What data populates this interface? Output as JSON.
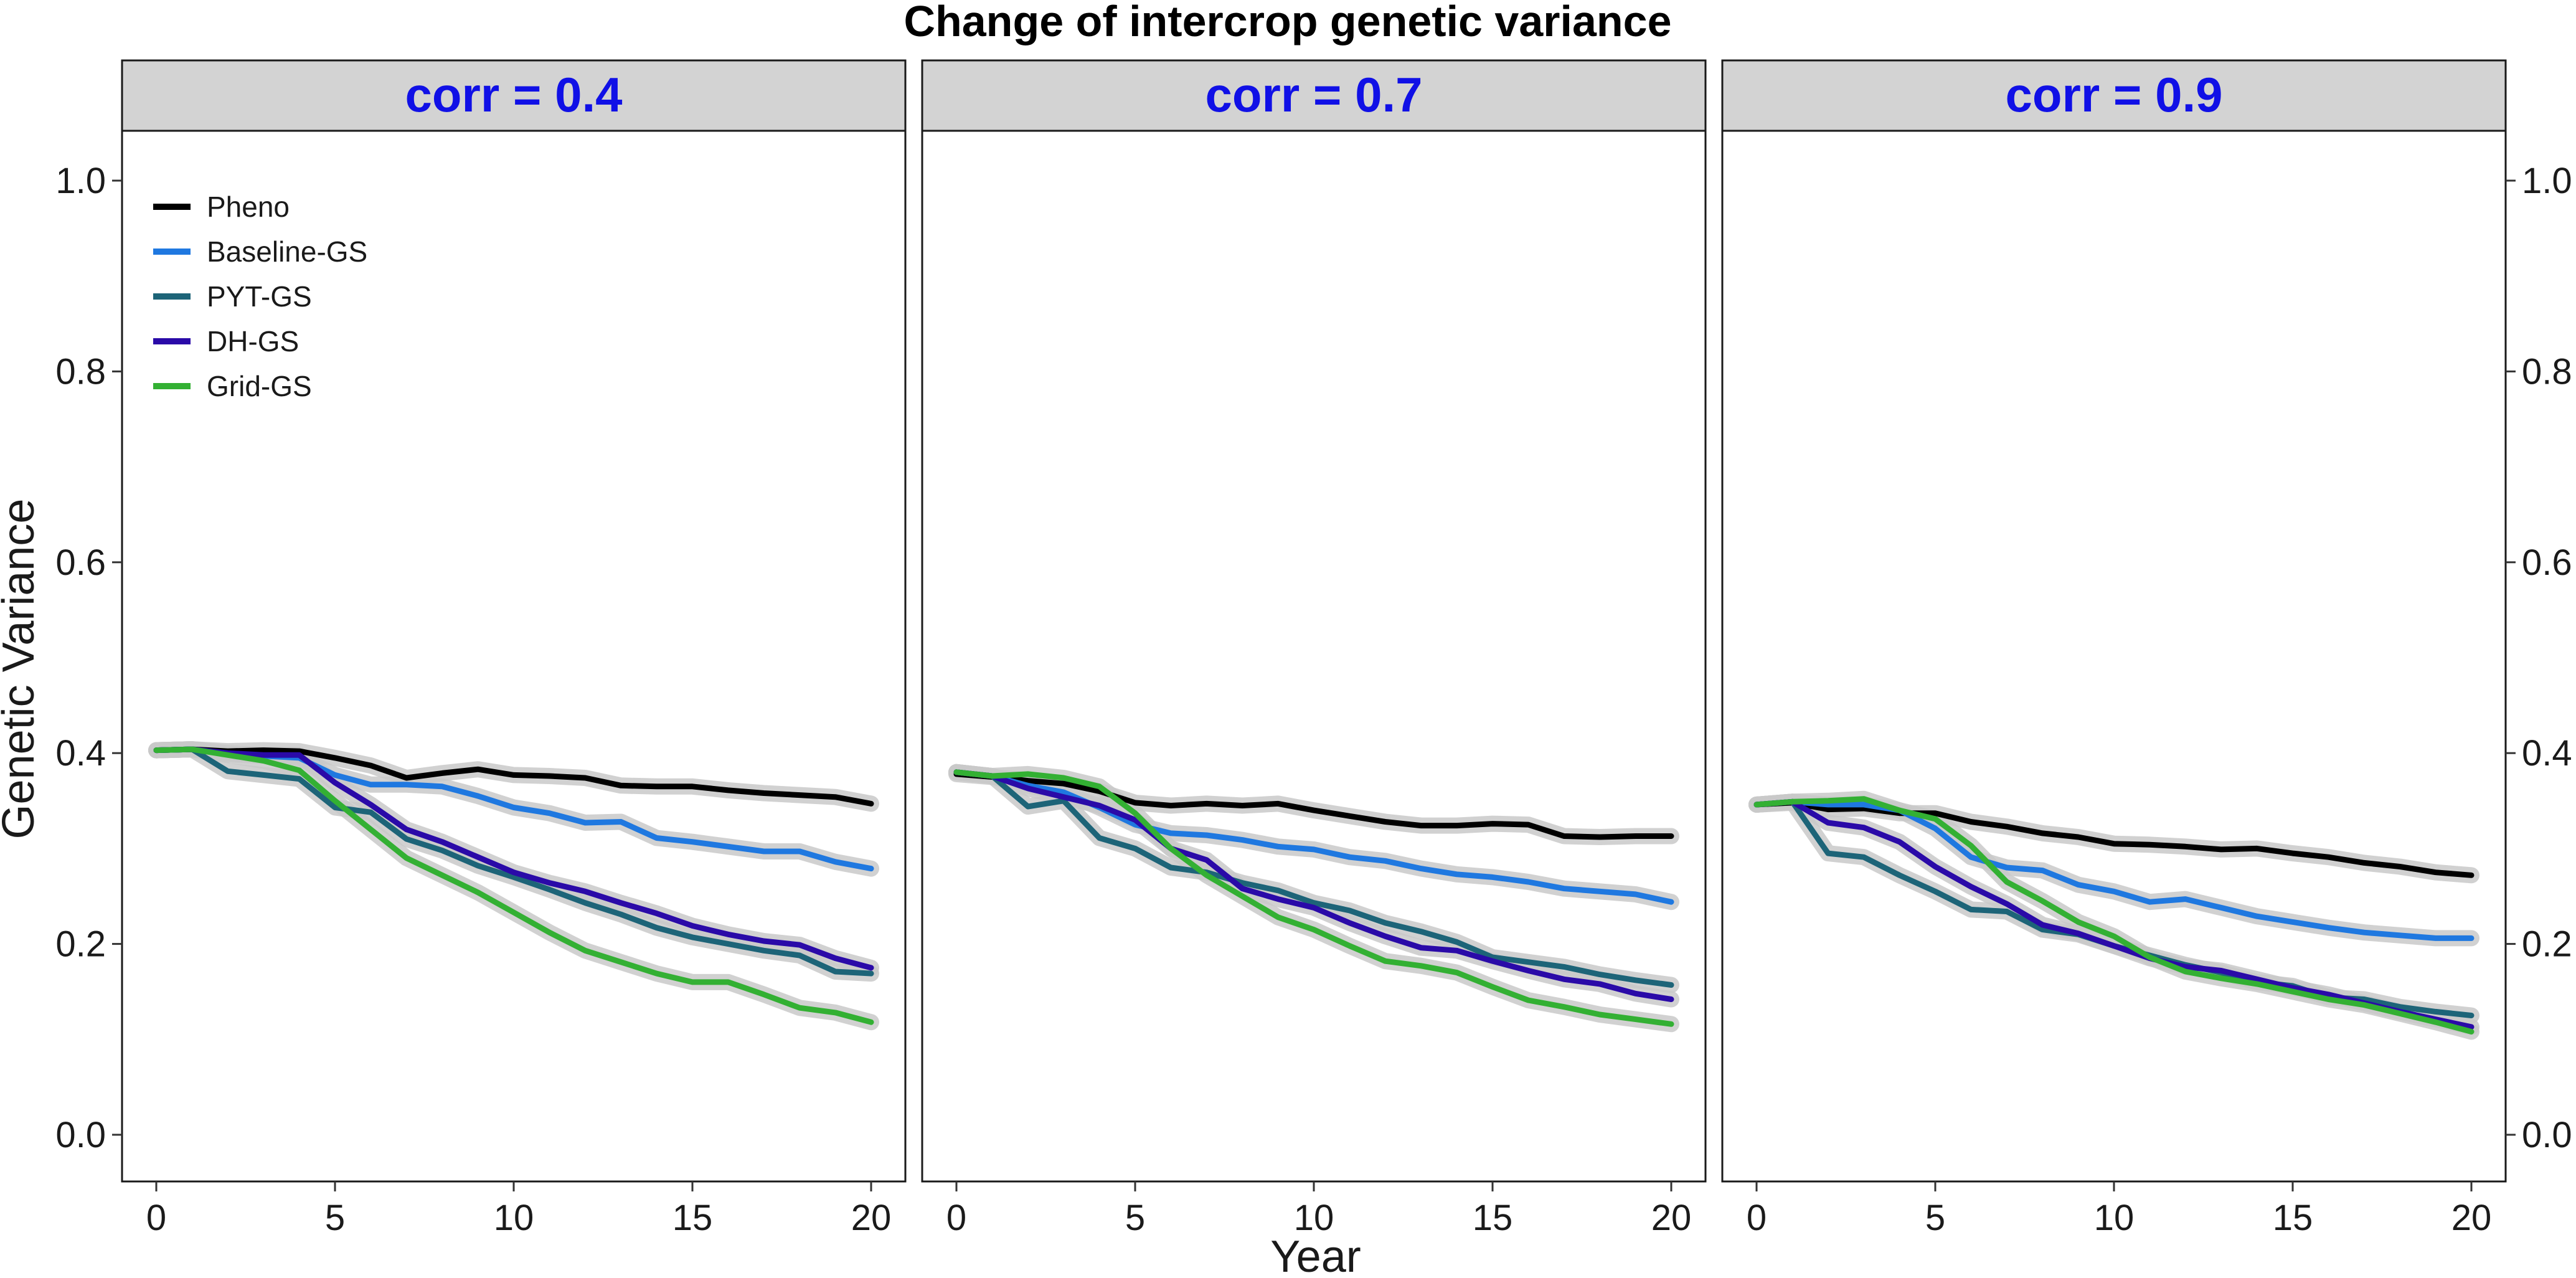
{
  "chart_data": {
    "type": "line",
    "title": "Change of intercrop genetic variance",
    "xlabel": "Year",
    "ylabel": "Genetic Variance",
    "xlim": [
      -1,
      21
    ],
    "ylim": [
      -0.05,
      1.05
    ],
    "x_ticks": [
      0,
      5,
      10,
      15,
      20
    ],
    "x_tick_labels": [
      "0",
      "5",
      "10",
      "15",
      "20"
    ],
    "y_ticks": [
      0.0,
      0.2,
      0.4,
      0.6,
      0.8,
      1.0
    ],
    "y_tick_labels": [
      "0.0",
      "0.2",
      "0.4",
      "0.6",
      "0.8",
      "1.0"
    ],
    "legend_position": "top-left",
    "strip_color": "#1010e6",
    "strip_fill": "#d3d3d3",
    "band_color": "#c9c9c9",
    "x": [
      0,
      1,
      2,
      3,
      4,
      5,
      6,
      7,
      8,
      9,
      10,
      11,
      12,
      13,
      14,
      15,
      16,
      17,
      18,
      19,
      20
    ],
    "panels": [
      {
        "label": "corr = 0.4",
        "series": [
          {
            "name": "Pheno",
            "color": "#000000",
            "values": [
              0.403,
              0.404,
              0.402,
              0.403,
              0.402,
              0.395,
              0.387,
              0.374,
              0.379,
              0.383,
              0.377,
              0.376,
              0.374,
              0.366,
              0.365,
              0.365,
              0.361,
              0.358,
              0.356,
              0.354,
              0.347
            ]
          },
          {
            "name": "Baseline-GS",
            "color": "#1f78e0",
            "values": [
              0.403,
              0.404,
              0.399,
              0.397,
              0.395,
              0.377,
              0.367,
              0.367,
              0.365,
              0.355,
              0.343,
              0.337,
              0.327,
              0.328,
              0.311,
              0.307,
              0.302,
              0.297,
              0.297,
              0.286,
              0.279
            ]
          },
          {
            "name": "PYT-GS",
            "color": "#1d6478",
            "values": [
              0.403,
              0.404,
              0.381,
              0.377,
              0.373,
              0.343,
              0.338,
              0.31,
              0.298,
              0.282,
              0.27,
              0.257,
              0.243,
              0.231,
              0.217,
              0.207,
              0.2,
              0.193,
              0.188,
              0.171,
              0.169
            ]
          },
          {
            "name": "DH-GS",
            "color": "#2a0aa8",
            "values": [
              0.403,
              0.404,
              0.4,
              0.398,
              0.398,
              0.369,
              0.346,
              0.32,
              0.307,
              0.291,
              0.275,
              0.264,
              0.255,
              0.243,
              0.232,
              0.219,
              0.21,
              0.203,
              0.199,
              0.185,
              0.175
            ]
          },
          {
            "name": "Grid-GS",
            "color": "#33b033",
            "values": [
              0.403,
              0.404,
              0.398,
              0.392,
              0.382,
              0.35,
              0.32,
              0.29,
              0.272,
              0.254,
              0.233,
              0.212,
              0.193,
              0.181,
              0.169,
              0.16,
              0.16,
              0.147,
              0.133,
              0.128,
              0.118
            ]
          }
        ]
      },
      {
        "label": "corr = 0.7",
        "series": [
          {
            "name": "Pheno",
            "color": "#000000",
            "values": [
              0.378,
              0.375,
              0.371,
              0.368,
              0.36,
              0.348,
              0.345,
              0.347,
              0.345,
              0.347,
              0.34,
              0.334,
              0.328,
              0.324,
              0.324,
              0.326,
              0.325,
              0.313,
              0.312,
              0.313,
              0.313
            ]
          },
          {
            "name": "Baseline-GS",
            "color": "#1f78e0",
            "values": [
              0.38,
              0.376,
              0.366,
              0.359,
              0.343,
              0.325,
              0.316,
              0.314,
              0.309,
              0.302,
              0.299,
              0.291,
              0.287,
              0.279,
              0.273,
              0.27,
              0.265,
              0.258,
              0.255,
              0.252,
              0.244
            ]
          },
          {
            "name": "PYT-GS",
            "color": "#1d6478",
            "values": [
              0.38,
              0.376,
              0.344,
              0.35,
              0.311,
              0.3,
              0.28,
              0.275,
              0.264,
              0.256,
              0.243,
              0.235,
              0.222,
              0.213,
              0.202,
              0.186,
              0.181,
              0.176,
              0.168,
              0.162,
              0.157
            ]
          },
          {
            "name": "DH-GS",
            "color": "#2a0aa8",
            "values": [
              0.38,
              0.376,
              0.363,
              0.354,
              0.345,
              0.33,
              0.3,
              0.288,
              0.258,
              0.247,
              0.238,
              0.222,
              0.208,
              0.196,
              0.193,
              0.182,
              0.172,
              0.163,
              0.158,
              0.148,
              0.142
            ]
          },
          {
            "name": "Grid-GS",
            "color": "#33b033",
            "values": [
              0.38,
              0.376,
              0.378,
              0.374,
              0.365,
              0.337,
              0.3,
              0.272,
              0.25,
              0.228,
              0.215,
              0.198,
              0.182,
              0.177,
              0.17,
              0.155,
              0.141,
              0.134,
              0.126,
              0.121,
              0.116
            ]
          }
        ]
      },
      {
        "label": "corr = 0.9",
        "series": [
          {
            "name": "Pheno",
            "color": "#000000",
            "values": [
              0.346,
              0.348,
              0.341,
              0.342,
              0.337,
              0.337,
              0.328,
              0.323,
              0.316,
              0.312,
              0.305,
              0.304,
              0.302,
              0.299,
              0.3,
              0.295,
              0.291,
              0.285,
              0.281,
              0.275,
              0.272
            ]
          },
          {
            "name": "Baseline-GS",
            "color": "#1f78e0",
            "values": [
              0.346,
              0.349,
              0.346,
              0.346,
              0.34,
              0.321,
              0.291,
              0.28,
              0.277,
              0.262,
              0.255,
              0.244,
              0.247,
              0.238,
              0.229,
              0.223,
              0.217,
              0.212,
              0.209,
              0.206,
              0.206
            ]
          },
          {
            "name": "PYT-GS",
            "color": "#1d6478",
            "values": [
              0.346,
              0.349,
              0.295,
              0.291,
              0.272,
              0.255,
              0.236,
              0.234,
              0.215,
              0.21,
              0.198,
              0.188,
              0.178,
              0.17,
              0.16,
              0.156,
              0.144,
              0.142,
              0.134,
              0.129,
              0.125
            ]
          },
          {
            "name": "DH-GS",
            "color": "#2a0aa8",
            "values": [
              0.346,
              0.349,
              0.327,
              0.322,
              0.307,
              0.281,
              0.26,
              0.242,
              0.22,
              0.211,
              0.198,
              0.185,
              0.176,
              0.172,
              0.163,
              0.154,
              0.147,
              0.138,
              0.129,
              0.121,
              0.113
            ]
          },
          {
            "name": "Grid-GS",
            "color": "#33b033",
            "values": [
              0.346,
              0.349,
              0.35,
              0.352,
              0.34,
              0.331,
              0.303,
              0.265,
              0.245,
              0.223,
              0.208,
              0.186,
              0.171,
              0.164,
              0.158,
              0.15,
              0.142,
              0.136,
              0.127,
              0.118,
              0.108
            ]
          }
        ]
      }
    ]
  }
}
